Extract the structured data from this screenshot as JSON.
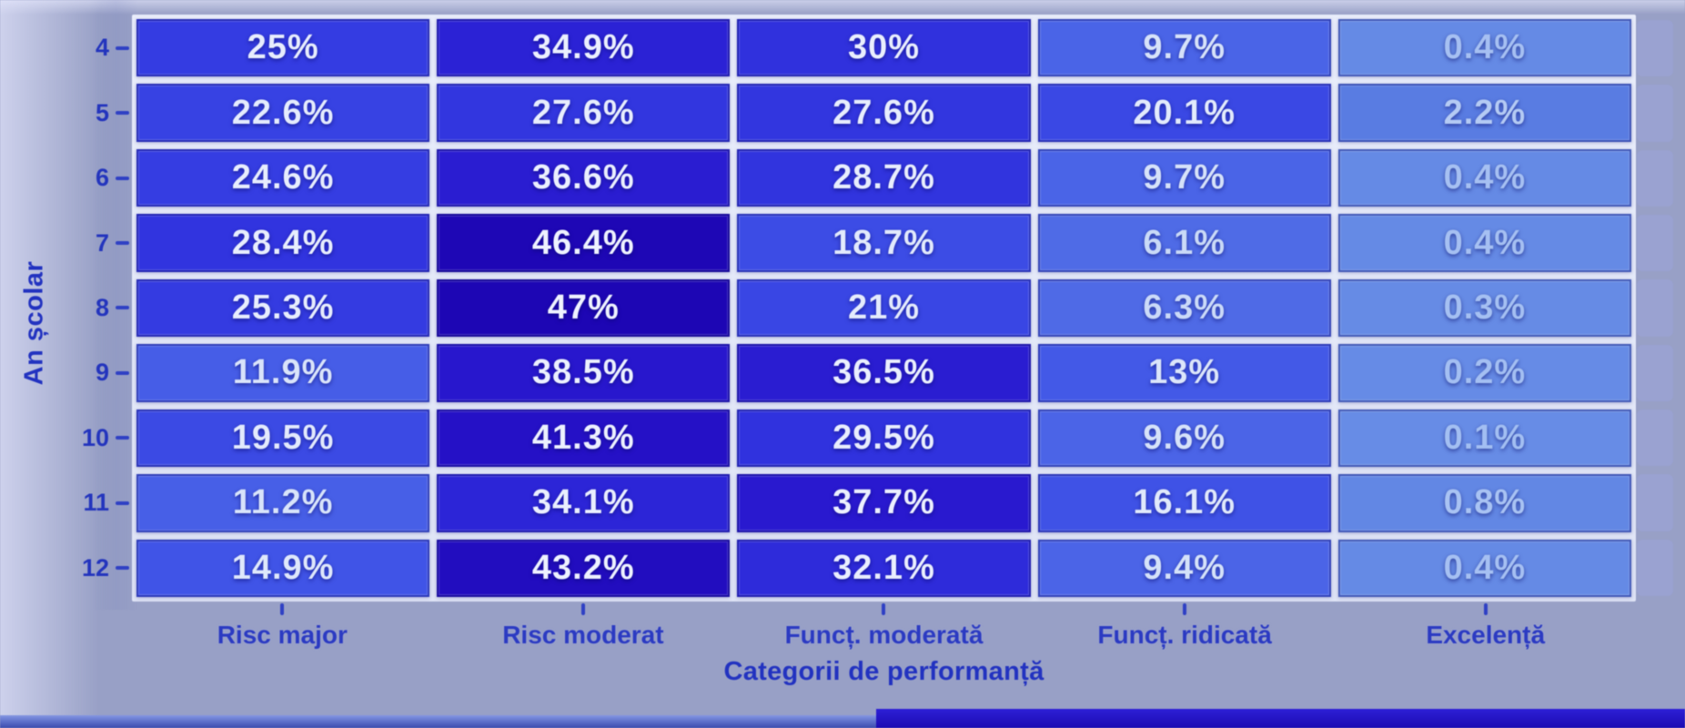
{
  "chart_data": {
    "type": "heatmap",
    "title": "",
    "xlabel": "Categorii de performanță",
    "ylabel": "An școlar",
    "rows": [
      "4",
      "5",
      "6",
      "7",
      "8",
      "9",
      "10",
      "11",
      "12"
    ],
    "columns": [
      "Risc major",
      "Risc moderat",
      "Funcț. moderată",
      "Funcț. ridicată",
      "Excelență"
    ],
    "values": [
      [
        25,
        34.9,
        30,
        9.7,
        0.4
      ],
      [
        22.6,
        27.6,
        27.6,
        20.1,
        2.2
      ],
      [
        24.6,
        36.6,
        28.7,
        9.7,
        0.4
      ],
      [
        28.4,
        46.4,
        18.7,
        6.1,
        0.4
      ],
      [
        25.3,
        47,
        21,
        6.3,
        0.3
      ],
      [
        11.9,
        38.5,
        36.5,
        13,
        0.2
      ],
      [
        19.5,
        41.3,
        29.5,
        9.6,
        0.1
      ],
      [
        11.2,
        34.1,
        37.7,
        16.1,
        0.8
      ],
      [
        14.9,
        43.2,
        32.1,
        9.4,
        0.4
      ]
    ],
    "cell_labels": [
      [
        "25%",
        "34.9%",
        "30%",
        "9.7%",
        "0.4%"
      ],
      [
        "22.6%",
        "27.6%",
        "27.6%",
        "20.1%",
        "2.2%"
      ],
      [
        "24.6%",
        "36.6%",
        "28.7%",
        "9.7%",
        "0.4%"
      ],
      [
        "28.4%",
        "46.4%",
        "18.7%",
        "6.1%",
        "0.4%"
      ],
      [
        "25.3%",
        "47%",
        "21%",
        "6.3%",
        "0.3%"
      ],
      [
        "11.9%",
        "38.5%",
        "36.5%",
        "13%",
        "0.2%"
      ],
      [
        "19.5%",
        "41.3%",
        "29.5%",
        "9.6%",
        "0.1%"
      ],
      [
        "11.2%",
        "34.1%",
        "37.7%",
        "16.1%",
        "0.8%"
      ],
      [
        "14.9%",
        "43.2%",
        "32.1%",
        "9.4%",
        "0.4%"
      ]
    ],
    "value_range": [
      0,
      47
    ],
    "legend": "none",
    "grid": "white-gaps-between-cells",
    "colormap_stops": [
      [
        0,
        "#688de6"
      ],
      [
        1,
        "#6085e4"
      ],
      [
        2.2,
        "#597ce2"
      ],
      [
        6,
        "#4f6be6"
      ],
      [
        10,
        "#4a63e7"
      ],
      [
        14,
        "#4156e7"
      ],
      [
        18,
        "#3d4ee5"
      ],
      [
        22,
        "#3843e3"
      ],
      [
        26,
        "#3339e1"
      ],
      [
        30,
        "#3031dd"
      ],
      [
        34,
        "#2c25d7"
      ],
      [
        38,
        "#2918ce"
      ],
      [
        42,
        "#2410c4"
      ],
      [
        45,
        "#1f08b8"
      ],
      [
        47,
        "#1d06b4"
      ]
    ],
    "text_color_stops": [
      [
        0,
        "#a2bef2"
      ],
      [
        1,
        "#abc4f3"
      ],
      [
        3,
        "#bccff5"
      ],
      [
        8,
        "#d3e0f9"
      ],
      [
        15,
        "#dfe8fb"
      ],
      [
        25,
        "#e7edfd"
      ],
      [
        47,
        "#eff3ff"
      ]
    ]
  },
  "colors": {
    "background": "#c2c7ef",
    "grid_gap": "#e5eafa",
    "axis_text": "#2334bd",
    "tick_mark": "#2f40c4",
    "axis_title": "#2232c0",
    "bottom_bar_left": "#5a6cc8",
    "bottom_bar_right": "#2213c8"
  }
}
